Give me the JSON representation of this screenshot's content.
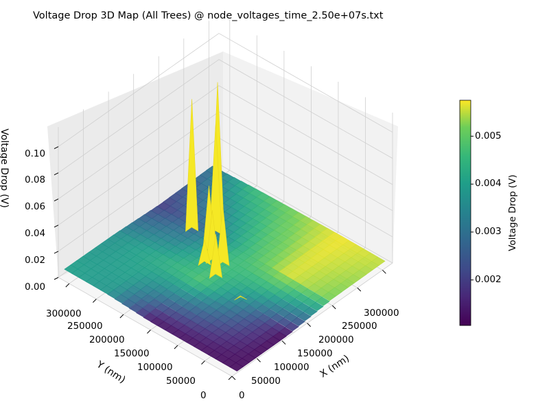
{
  "chart_data": {
    "type": "surface3d",
    "title": "Voltage Drop 3D Map (All Trees) @ node_voltages_time_2.50e+07s.txt",
    "xlabel": "X (nm)",
    "ylabel": "Y (nm)",
    "zlabel": "Voltage Drop (V)",
    "x_ticks": [
      "0",
      "50000",
      "100000",
      "150000",
      "200000",
      "250000",
      "300000"
    ],
    "y_ticks": [
      "0",
      "50000",
      "100000",
      "150000",
      "200000",
      "250000",
      "300000"
    ],
    "z_ticks": [
      "0.00",
      "0.02",
      "0.04",
      "0.06",
      "0.08",
      "0.10"
    ],
    "xlim": [
      0,
      320000
    ],
    "ylim": [
      0,
      320000
    ],
    "zlim": [
      0,
      0.115
    ],
    "grid": true,
    "colormap": "viridis",
    "colorbar": {
      "label": "Voltage Drop (V)",
      "ticks": [
        "0.002",
        "0.003",
        "0.004",
        "0.005"
      ],
      "tick_values": [
        0.002,
        0.003,
        0.004,
        0.005
      ],
      "range": [
        0.00105,
        0.00575
      ]
    },
    "surface_rows_x": [
      20000,
      110000,
      200000,
      300000
    ],
    "surface_cols_y": [
      5000,
      80000,
      160000,
      240000,
      315000
    ],
    "surface_values": [
      [
        0.0012,
        0.0013,
        0.0014,
        0.0038,
        0.004
      ],
      [
        0.0012,
        0.003,
        0.0048,
        0.0042,
        0.0037
      ],
      [
        0.0052,
        0.0056,
        0.0045,
        0.0028,
        0.002
      ],
      [
        0.0055,
        0.0057,
        0.0052,
        0.0045,
        0.003
      ]
    ],
    "spikes": [
      {
        "x": 220000,
        "y": 230000,
        "value": 0.111
      },
      {
        "x": 185000,
        "y": 245000,
        "value": 0.104
      },
      {
        "x": 200000,
        "y": 215000,
        "value": 0.088
      },
      {
        "x": 165000,
        "y": 195000,
        "value": 0.055
      },
      {
        "x": 150000,
        "y": 175000,
        "value": 0.045
      },
      {
        "x": 155000,
        "y": 160000,
        "value": 0.05
      },
      {
        "x": 130000,
        "y": 150000,
        "value": 0.038
      },
      {
        "x": 140000,
        "y": 180000,
        "value": 0.024
      },
      {
        "x": 120000,
        "y": 95000,
        "value": 0.006
      }
    ],
    "colors": {
      "spike": "#f5e825",
      "pane_left": "#ebebeb",
      "pane_right": "#f2f2f2",
      "pane_floor": "#f6f6f6",
      "grid": "#cfcfcf"
    }
  }
}
